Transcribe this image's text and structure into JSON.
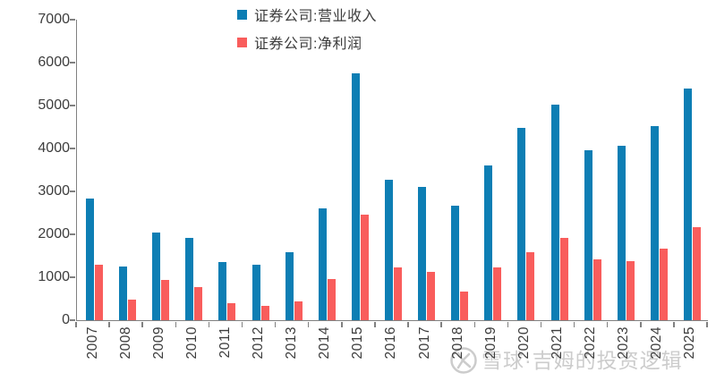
{
  "chart_data": {
    "type": "bar",
    "title": "",
    "categories": [
      "2007",
      "2008",
      "2009",
      "2010",
      "2011",
      "2012",
      "2013",
      "2014",
      "2015",
      "2016",
      "2017",
      "2018",
      "2019",
      "2020",
      "2021",
      "2022",
      "2023",
      "2024",
      "2025"
    ],
    "series": [
      {
        "name": "证券公司:营业收入",
        "color": "#0d7eb4",
        "values": [
          2836,
          1251,
          2050,
          1911,
          1360,
          1295,
          1592,
          2603,
          5752,
          3280,
          3113,
          2663,
          3605,
          4485,
          5024,
          3950,
          4059,
          4512,
          5400
        ]
      },
      {
        "name": "证券公司:净利润",
        "color": "#f95d5c",
        "values": [
          1300,
          482,
          933,
          775,
          394,
          329,
          440,
          966,
          2448,
          1234,
          1130,
          666,
          1231,
          1575,
          1911,
          1423,
          1378,
          1673,
          2160
        ]
      }
    ],
    "xlabel": "",
    "ylabel": "",
    "ylim": [
      0,
      7000
    ],
    "yticks": [
      0,
      1000,
      2000,
      3000,
      4000,
      5000,
      6000,
      7000
    ],
    "grid": false,
    "legend_position": "top-center",
    "axis_color": "#808080",
    "text_color": "#3d3d3d"
  },
  "watermark": {
    "text": "雪球·吉姆的投资逻辑",
    "icon": "xueqiu-logo",
    "color": "#cccccc"
  }
}
